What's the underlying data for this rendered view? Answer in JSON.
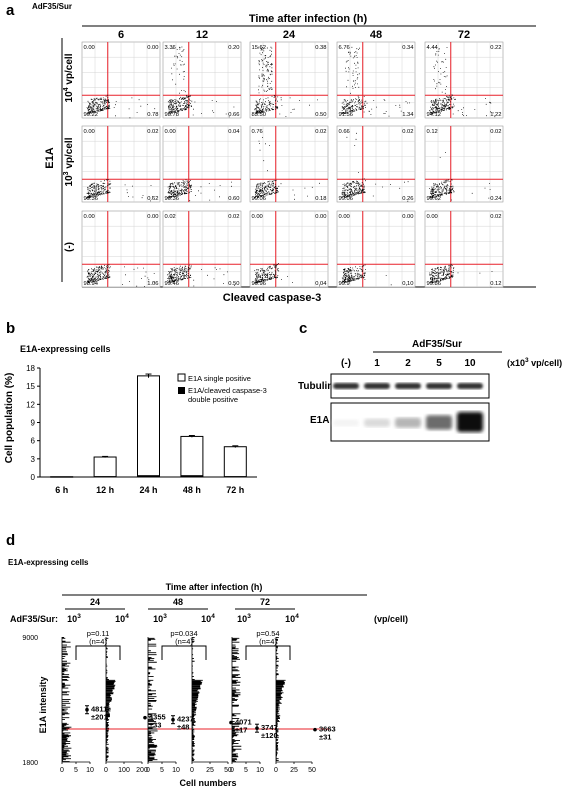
{
  "panel_a": {
    "letter": "a",
    "label": "AdF35/Sur",
    "top_title": "Time after infection (h)",
    "columns": [
      "6",
      "12",
      "24",
      "48",
      "72"
    ],
    "row_group_label": "E1A",
    "row_labels": [
      {
        "base": "10",
        "exp": "4",
        "unit": " vp/cell"
      },
      {
        "base": "10",
        "exp": "3",
        "unit": " vp/cell"
      },
      {
        "base": "(-)",
        "exp": "",
        "unit": ""
      }
    ],
    "x_label": "Cleaved caspase-3",
    "quadrants": [
      [
        [
          "0.00",
          "0.00",
          "99.22",
          "0.78"
        ],
        [
          "3.36",
          "0.20",
          "95.78",
          "0.66"
        ],
        [
          "15.62",
          "0.38",
          "83.50",
          "0.50"
        ],
        [
          "6.76",
          "0.34",
          "91.56",
          "1.34"
        ],
        [
          "4.44",
          "0.22",
          "94.12",
          "1.22"
        ]
      ],
      [
        [
          "0.00",
          "0.02",
          "99.36",
          "0.62"
        ],
        [
          "0.00",
          "0.04",
          "99.36",
          "0.60"
        ],
        [
          "0.76",
          "0.02",
          "99.06",
          "0.18"
        ],
        [
          "0.66",
          "0.02",
          "99.06",
          "0.26"
        ],
        [
          "0.12",
          "0.02",
          "99.62",
          "0.24"
        ]
      ],
      [
        [
          "0.00",
          "0.00",
          "98.94",
          "1.06"
        ],
        [
          "0.02",
          "0.02",
          "99.46",
          "0.50"
        ],
        [
          "0.00",
          "0.00",
          "99.96",
          "0.04"
        ],
        [
          "0.00",
          "0.00",
          "99.9",
          "0.10"
        ],
        [
          "0.00",
          "0.02",
          "99.86",
          "0.12"
        ]
      ]
    ]
  },
  "chart_data": [
    {
      "type": "bar",
      "panel": "b",
      "title": "E1A-expressing cells",
      "ylabel": "Cell population (%)",
      "categories": [
        "6 h",
        "12 h",
        "24 h",
        "48 h",
        "72 h"
      ],
      "ylim": [
        0,
        18
      ],
      "yticks": [
        0,
        3,
        6,
        9,
        12,
        15,
        18
      ],
      "stacked": true,
      "series": [
        {
          "name": "E1A single positive",
          "values": [
            0.05,
            3.3,
            16.7,
            6.7,
            5.0
          ],
          "color": "#ffffff"
        },
        {
          "name": "E1A/cleaved caspase-3 double positive",
          "values": [
            0.0,
            0.15,
            0.3,
            0.3,
            0.15
          ],
          "color": "#000000"
        }
      ],
      "error": [
        0.02,
        0.1,
        0.3,
        0.15,
        0.15
      ],
      "legend": "top-right"
    },
    {
      "type": "histogram",
      "panel": "d",
      "title": "E1A-expressing cells",
      "top_title": "Time after infection (h)",
      "group_label": "AdF35/Sur:",
      "unit_label": "(vp/cell)",
      "ylabel": "E1A intensity",
      "xlabel": "Cell numbers",
      "ylim": [
        1800,
        9000
      ],
      "threshold": 3700,
      "groups": [
        {
          "time": "24",
          "p": "p=0.11",
          "n": "(n=4)",
          "low": {
            "dose_base": "10",
            "dose_exp": "3",
            "mean": 4811,
            "label1": "4811",
            "label2": "±201",
            "ticks": [
              "0",
              "5",
              "10"
            ],
            "xmax": 10
          },
          "high": {
            "dose_base": "10",
            "dose_exp": "4",
            "mean": 4355,
            "label1": "4355",
            "label2": "±33",
            "ticks": [
              "0",
              "100",
              "200"
            ],
            "xmax": 200
          }
        },
        {
          "time": "48",
          "p": "p=0.034",
          "n": "(n=4)",
          "low": {
            "dose_base": "10",
            "dose_exp": "3",
            "mean": 4237,
            "label1": "4237",
            "label2": "±48",
            "ticks": [
              "0",
              "5",
              "10"
            ],
            "xmax": 10
          },
          "high": {
            "dose_base": "10",
            "dose_exp": "4",
            "mean": 4071,
            "label1": "4071",
            "label2": "±17",
            "ticks": [
              "0",
              "25",
              "50"
            ],
            "xmax": 50
          }
        },
        {
          "time": "72",
          "p": "p=0.54",
          "n": "(n=4)",
          "low": {
            "dose_base": "10",
            "dose_exp": "3",
            "mean": 3747,
            "label1": "3747",
            "label2": "±120",
            "ticks": [
              "0",
              "5",
              "10"
            ],
            "xmax": 10
          },
          "high": {
            "dose_base": "10",
            "dose_exp": "4",
            "mean": 3663,
            "label1": "3663",
            "label2": "±31",
            "ticks": [
              "0",
              "25",
              "50"
            ],
            "xmax": 50
          }
        }
      ]
    }
  ],
  "panel_b": {
    "letter": "b"
  },
  "panel_c": {
    "letter": "c",
    "label": "AdF35/Sur",
    "lanes": [
      "(-)",
      "1",
      "2",
      "5",
      "10"
    ],
    "unit_base": "(x10",
    "unit_exp": "3",
    "unit_tail": " vp/cell)",
    "rows": [
      "Tubulin-α",
      "E1A"
    ],
    "e1a_intensity": [
      0.05,
      0.15,
      0.3,
      0.6,
      1.0
    ]
  },
  "panel_d": {
    "letter": "d"
  },
  "colors": {
    "red": "#e8212a",
    "ink": "#000000"
  }
}
